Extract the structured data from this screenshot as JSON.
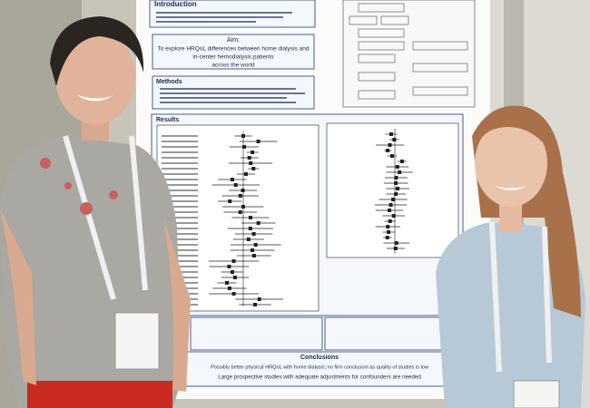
{
  "poster": {
    "introduction": "Introduction",
    "aim": {
      "heading": "Aim:",
      "lines": [
        "To explore HRQoL differences between home dialysis and",
        "in-center hemodialysis patients",
        "across the world"
      ]
    },
    "methods": "Methods",
    "results": "Results",
    "conclusions": {
      "heading": "Conclusions",
      "lines": [
        "Possibly better physical HRQoL with home dialysis; no firm conclusion as quality of studies is low",
        "Large prospective studies with adequate adjustments for confounders are needed"
      ]
    }
  }
}
